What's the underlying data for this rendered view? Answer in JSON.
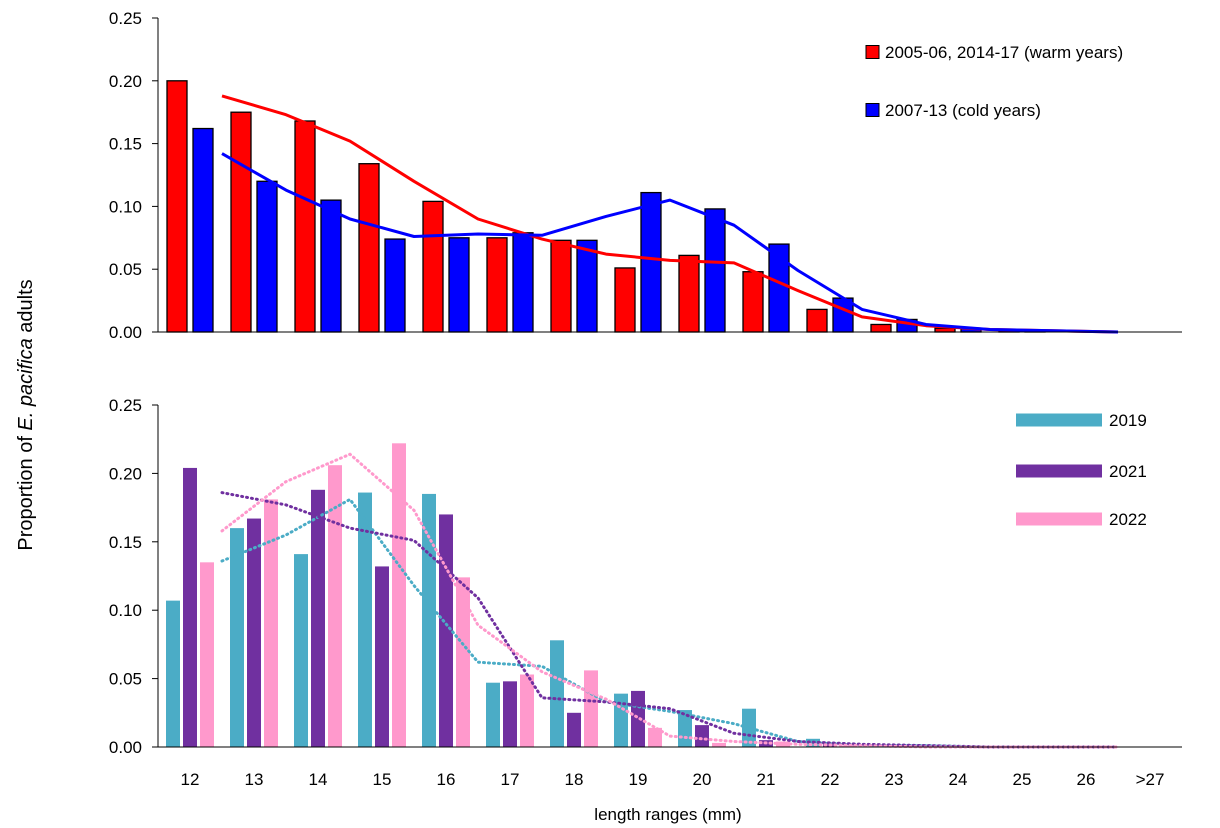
{
  "chart_data": [
    {
      "type": "bar",
      "title": "",
      "xlabel": "",
      "ylabel_parts": [
        "Proportion of ",
        "E. pacifica",
        " adults"
      ],
      "ylim": [
        0,
        0.25
      ],
      "yticks": [
        "0.00",
        "0.05",
        "0.10",
        "0.15",
        "0.20",
        "0.25"
      ],
      "bar_border": true,
      "legend_position": "top-right",
      "categories": [
        "12",
        "13",
        "14",
        "15",
        "16",
        "17",
        "18",
        "19",
        "20",
        "21",
        "22",
        "23",
        "24",
        "25",
        "26",
        ">27"
      ],
      "series": [
        {
          "name": "2005-06, 2014-17 (warm years)",
          "color": "#ff0000",
          "values": [
            0.2,
            0.175,
            0.168,
            0.134,
            0.104,
            0.075,
            0.073,
            0.051,
            0.061,
            0.048,
            0.018,
            0.006,
            0.003,
            0.001,
            0.0,
            0.0
          ],
          "trend": "solid",
          "trend_values": [
            0.188,
            0.173,
            0.152,
            0.12,
            0.09,
            0.074,
            0.062,
            0.057,
            0.055,
            0.033,
            0.012,
            0.005,
            0.002,
            0.001,
            0.0
          ]
        },
        {
          "name": "2007-13 (cold years)",
          "color": "#0000ff",
          "values": [
            0.162,
            0.12,
            0.105,
            0.074,
            0.075,
            0.079,
            0.073,
            0.111,
            0.098,
            0.07,
            0.027,
            0.01,
            0.003,
            0.001,
            0.0,
            0.0
          ],
          "trend": "solid",
          "trend_values": [
            0.142,
            0.113,
            0.09,
            0.076,
            0.078,
            0.077,
            0.092,
            0.105,
            0.085,
            0.049,
            0.018,
            0.006,
            0.002,
            0.001,
            0.0
          ]
        }
      ]
    },
    {
      "type": "bar",
      "title": "",
      "ylim": [
        0,
        0.25
      ],
      "yticks": [
        "0.00",
        "0.05",
        "0.10",
        "0.15",
        "0.20",
        "0.25"
      ],
      "bar_border": false,
      "legend_position": "top-right",
      "categories": [
        "12",
        "13",
        "14",
        "15",
        "16",
        "17",
        "18",
        "19",
        "20",
        "21",
        "22",
        "23",
        "24",
        "25",
        "26",
        ">27"
      ],
      "xlabel": "length ranges (mm)",
      "series": [
        {
          "name": "2019",
          "color": "#4bacc6",
          "values": [
            0.107,
            0.16,
            0.141,
            0.186,
            0.185,
            0.047,
            0.078,
            0.039,
            0.027,
            0.028,
            0.006,
            0.002,
            0.001,
            0.001,
            0.0,
            0.0
          ],
          "trend": "dotted",
          "trend_values": [
            0.136,
            0.155,
            0.181,
            0.118,
            0.062,
            0.059,
            0.033,
            0.026,
            0.017,
            0.004,
            0.001,
            0.001,
            0.0,
            0.0,
            0.0
          ]
        },
        {
          "name": "2021",
          "color": "#7030a0",
          "values": [
            0.204,
            0.167,
            0.188,
            0.132,
            0.17,
            0.048,
            0.025,
            0.041,
            0.016,
            0.005,
            0.003,
            0.001,
            0.0,
            0.0,
            0.0,
            0.0
          ],
          "trend": "dotted",
          "trend_values": [
            0.186,
            0.177,
            0.16,
            0.151,
            0.109,
            0.036,
            0.033,
            0.028,
            0.01,
            0.004,
            0.002,
            0.001,
            0.0,
            0.0,
            0.0
          ]
        },
        {
          "name": "2022",
          "color": "#ff99cc",
          "values": [
            0.135,
            0.181,
            0.206,
            0.222,
            0.124,
            0.053,
            0.056,
            0.014,
            0.003,
            0.004,
            0.001,
            0.001,
            0.0,
            0.0,
            0.0,
            0.0
          ],
          "trend": "dotted",
          "trend_values": [
            0.158,
            0.194,
            0.214,
            0.173,
            0.089,
            0.055,
            0.035,
            0.008,
            0.004,
            0.002,
            0.001,
            0.0,
            0.0,
            0.0,
            0.0
          ]
        }
      ]
    }
  ]
}
